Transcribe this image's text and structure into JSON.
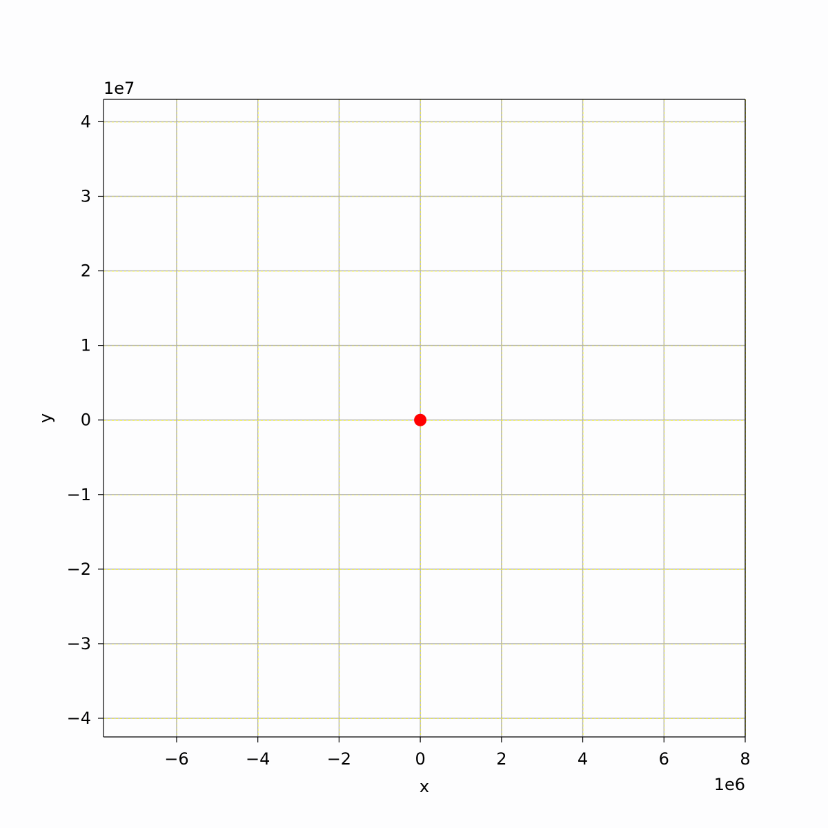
{
  "chart_data": {
    "type": "scatter",
    "title": "",
    "xlabel": "x",
    "ylabel": "y",
    "x_offset_label": "1e6",
    "y_offset_label": "1e7",
    "xlim": [
      -7.8,
      8.0
    ],
    "ylim": [
      -4.25,
      4.3
    ],
    "x_ticks": [
      -6,
      -4,
      -2,
      0,
      2,
      4,
      6,
      8
    ],
    "x_tick_labels": [
      "−6",
      "−4",
      "−2",
      "0",
      "2",
      "4",
      "6",
      "8"
    ],
    "y_ticks": [
      -4,
      -3,
      -2,
      -1,
      0,
      1,
      2,
      3,
      4
    ],
    "y_tick_labels": [
      "−4",
      "−3",
      "−2",
      "−1",
      "0",
      "1",
      "2",
      "3",
      "4"
    ],
    "grid": true,
    "points": [
      {
        "x": 0,
        "y": 0,
        "color": "#ff0000"
      }
    ],
    "colors": {
      "grid_yellow": "#f5f53a",
      "grid_gray": "#b0b0b0",
      "axes": "#000000",
      "point": "#ff0000"
    }
  }
}
